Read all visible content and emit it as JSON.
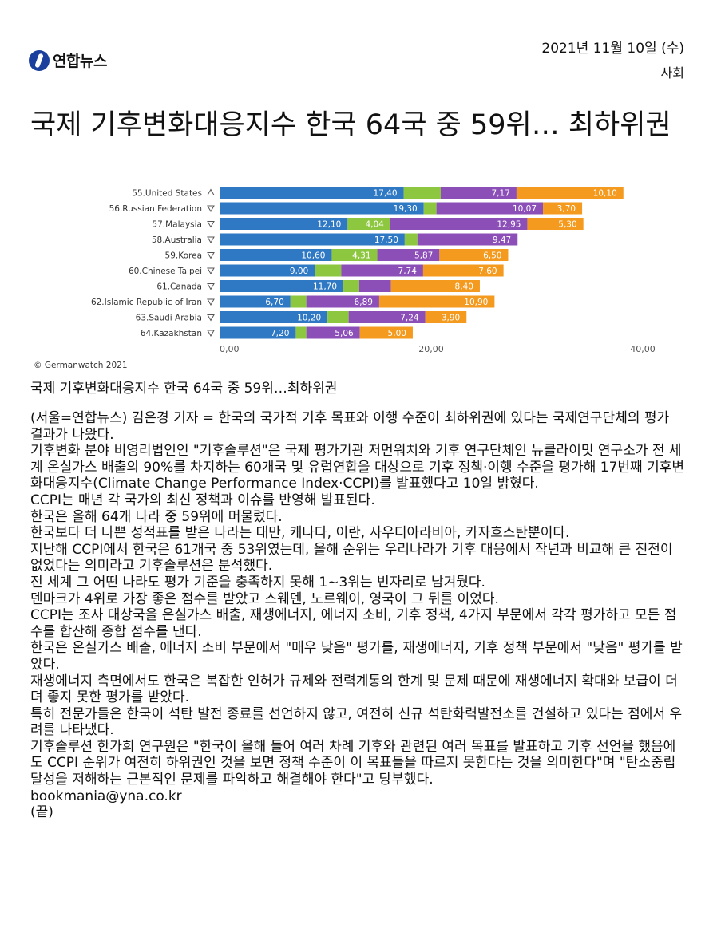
{
  "header": {
    "date": "2021년 11월 10일 (수)",
    "section": "사회",
    "logo_text": "연합뉴스"
  },
  "article": {
    "title": "국제 기후변화대응지수 한국 64국 중 59위… 최하위권",
    "caption": "국제 기후변화대응지수 한국 64국 중 59위…최하위권",
    "paragraphs": [
      "(서울=연합뉴스) 김은경 기자 = 한국의 국가적 기후 목표와 이행 수준이 최하위권에 있다는 국제연구단체의 평가 결과가 나왔다.",
      "기후변화 분야 비영리법인인 \"기후솔루션\"은 국제 평가기관 저먼워치와 기후 연구단체인 뉴클라이밋 연구소가 전 세계 온실가스 배출의 90%를 차지하는 60개국 및 유럽연합을 대상으로 기후 정책·이행 수준을 평가해 17번째 기후변화대응지수(Climate Change Performance Index·CCPI)를 발표했다고 10일 밝혔다.",
      "CCPI는 매년 각 국가의 최신 정책과 이슈를 반영해 발표된다.",
      "한국은 올해 64개 나라 중 59위에 머물렀다.",
      "한국보다 더 나쁜 성적표를 받은 나라는 대만, 캐나다, 이란, 사우디아라비아, 카자흐스탄뿐이다.",
      "지난해 CCPI에서 한국은 61개국 중 53위였는데, 올해 순위는 우리나라가 기후 대응에서 작년과 비교해 큰 진전이 없었다는 의미라고 기후솔루션은 분석했다.",
      "전 세계 그 어떤 나라도 평가 기준을 충족하지 못해 1~3위는 빈자리로 남겨뒀다.",
      "덴마크가 4위로 가장 좋은 점수를 받았고 스웨덴, 노르웨이, 영국이 그 뒤를 이었다.",
      "CCPI는 조사 대상국을 온실가스 배출, 재생에너지, 에너지 소비, 기후 정책, 4가지 부문에서 각각 평가하고 모든 점수를 합산해 종합 점수를 낸다.",
      "한국은 온실가스 배출, 에너지 소비 부문에서 \"매우 낮음\" 평가를, 재생에너지, 기후 정책 부문에서 \"낮음\" 평가를 받았다.",
      "재생에너지 측면에서도 한국은 복잡한 인허가 규제와 전력계통의 한계 및 문제 때문에 재생에너지 확대와 보급이 더뎌 좋지 못한 평가를 받았다.",
      "특히 전문가들은 한국이 석탄 발전 종료를 선언하지 않고, 여전히 신규 석탄화력발전소를 건설하고 있다는 점에서 우려를 나타냈다.",
      "기후솔루션 한가희 연구원은 \"한국이 올해 들어 여러 차례 기후와 관련된 여러 목표를 발표하고 기후 선언을 했음에도 CCPI 순위가 여전히 하위권인 것을 보면 정책 수준이 이 목표들을 따르지 못한다는 것을 의미한다\"며 \"탄소중립 달성을 저해하는 근본적인 문제를 파악하고 해결해야 한다\"고 당부했다.",
      "bookmania@yna.co.kr",
      "(끝)"
    ]
  },
  "chart_data": {
    "type": "bar",
    "stacked": true,
    "orientation": "horizontal",
    "categories": [
      "55.United States",
      "56.Russian Federation",
      "57.Malaysia",
      "58.Australia",
      "59.Korea",
      "60.Chinese Taipei",
      "61.Canada",
      "62.Islamic Republic of Iran",
      "63.Saudi Arabia",
      "64.Kazakhstan"
    ],
    "trend": [
      "up",
      "down",
      "down",
      "down",
      "down",
      "down",
      "down",
      "down",
      "down",
      "down"
    ],
    "series": [
      {
        "color": "#2f78c4",
        "values": [
          17.4,
          19.3,
          12.1,
          17.5,
          10.6,
          9.0,
          11.7,
          6.7,
          10.2,
          7.2
        ],
        "labels": [
          "17,40",
          "19,30",
          "12,10",
          "17,50",
          "10,60",
          "9,00",
          "11,70",
          "6,70",
          "10,20",
          "7,20"
        ]
      },
      {
        "color": "#8dc63f",
        "values": [
          3.5,
          1.2,
          4.04,
          1.2,
          4.31,
          2.5,
          1.5,
          1.5,
          2.0,
          1.0
        ],
        "labels": [
          "",
          "",
          "4,04",
          "",
          "4,31",
          "",
          "",
          "",
          "",
          ""
        ]
      },
      {
        "color": "#8c4fb8",
        "values": [
          7.17,
          10.07,
          12.95,
          9.47,
          5.87,
          7.74,
          3.0,
          6.89,
          7.24,
          5.06
        ],
        "labels": [
          "7,17",
          "10,07",
          "12,95",
          "9,47",
          "5,87",
          "7,74",
          "",
          "6,89",
          "7,24",
          "5,06"
        ]
      },
      {
        "color": "#f39a1f",
        "values": [
          10.1,
          3.7,
          5.3,
          0,
          6.5,
          7.6,
          8.4,
          10.9,
          3.9,
          5.0
        ],
        "labels": [
          "10,10",
          "3,70",
          "5,30",
          "",
          "6,50",
          "7,60",
          "8,40",
          "10,90",
          "3,90",
          "5,00"
        ]
      }
    ],
    "x_ticks": [
      "0,00",
      "20,00",
      "40,00"
    ],
    "xlim": [
      0,
      40
    ],
    "source": "© Germanwatch 2021"
  }
}
